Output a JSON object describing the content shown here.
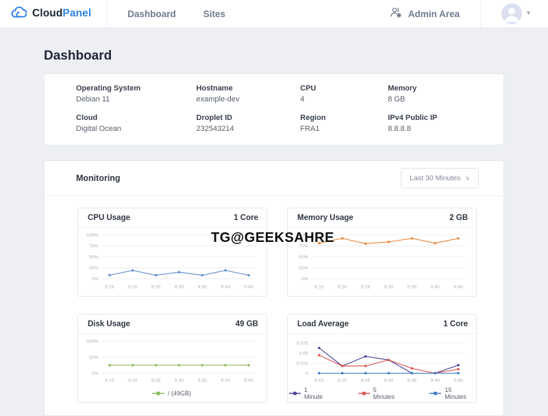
{
  "header": {
    "brand": {
      "part1": "Cloud",
      "part2": "Panel"
    },
    "nav": [
      {
        "label": "Dashboard"
      },
      {
        "label": "Sites"
      }
    ],
    "admin_area_label": "Admin Area"
  },
  "page": {
    "title": "Dashboard"
  },
  "system_info": {
    "fields": [
      {
        "label": "Operating System",
        "value": "Debian 11"
      },
      {
        "label": "Hostname",
        "value": "example-dev"
      },
      {
        "label": "CPU",
        "value": "4"
      },
      {
        "label": "Memory",
        "value": "8 GB"
      },
      {
        "label": "Cloud",
        "value": "Digital Ocean"
      },
      {
        "label": "Droplet ID",
        "value": "232543214"
      },
      {
        "label": "Region",
        "value": "FRA1"
      },
      {
        "label": "IPv4 Public IP",
        "value": "8.8.8.8"
      }
    ]
  },
  "monitoring": {
    "title": "Monitoring",
    "range_selector": "Last 30 Minutes"
  },
  "watermark": "TG@GEEKSAHRE",
  "colors": {
    "accent": "#2f87e8",
    "grid": "#ebeef2",
    "tick_text": "#a9b1bd"
  },
  "chart_data": [
    {
      "type": "line",
      "title": "CPU Usage",
      "value_label": "1 Core",
      "x": [
        "9:15",
        "9:20",
        "9:25",
        "9:30",
        "9:35",
        "9:40",
        "9:45"
      ],
      "ylim": [
        0,
        100
      ],
      "ytick_values": [
        0,
        25,
        50,
        75,
        100
      ],
      "ytick_labels": [
        "0%",
        "25%",
        "50%",
        "75%",
        "100%"
      ],
      "grid": true,
      "show_legend": false,
      "series": [
        {
          "name": "CPU",
          "color": "#6691cf",
          "values": [
            8,
            19,
            8,
            15,
            8,
            19,
            8
          ]
        }
      ]
    },
    {
      "type": "line",
      "title": "Memory Usage",
      "value_label": "2 GB",
      "x": [
        "9:15",
        "9:20",
        "9:25",
        "9:30",
        "9:35",
        "9:40",
        "9:45"
      ],
      "ylim": [
        0,
        100
      ],
      "ytick_values": [
        0,
        25,
        50,
        75,
        100
      ],
      "ytick_labels": [
        "0%",
        "25%",
        "50%",
        "75%",
        "100%"
      ],
      "grid": true,
      "show_legend": false,
      "series": [
        {
          "name": "Memory",
          "color": "#e6893f",
          "values": [
            81,
            92,
            80,
            84,
            92,
            81,
            92
          ]
        }
      ]
    },
    {
      "type": "line",
      "title": "Disk Usage",
      "value_label": "49 GB",
      "x": [
        "9:15",
        "9:20",
        "9:25",
        "9:30",
        "9:35",
        "9:40",
        "9:45"
      ],
      "ylim": [
        0,
        100
      ],
      "ytick_values": [
        0,
        50,
        100
      ],
      "ytick_labels": [
        "0%",
        "50%",
        "100%"
      ],
      "grid": true,
      "show_legend": true,
      "series": [
        {
          "name": "/ (49GB)",
          "color": "#8cb85c",
          "values": [
            25,
            25,
            25,
            25,
            25,
            25,
            25
          ]
        }
      ]
    },
    {
      "type": "line",
      "title": "Load Average",
      "value_label": "1 Core",
      "x": [
        "9:15",
        "9:20",
        "9:25",
        "9:30",
        "9:35",
        "9:40",
        "9:45"
      ],
      "ylim": [
        0,
        0.08
      ],
      "ytick_values": [
        0,
        0.025,
        0.05,
        0.075
      ],
      "ytick_labels": [
        "0",
        "0.025",
        "0.05",
        "0.075"
      ],
      "grid": true,
      "show_legend": true,
      "series": [
        {
          "name": "1 Minute",
          "color": "#4c4499",
          "values": [
            0.063,
            0.018,
            0.042,
            0.033,
            0,
            0,
            0.02
          ]
        },
        {
          "name": "5 Minutes",
          "color": "#d95555",
          "values": [
            0.045,
            0.018,
            0.018,
            0.033,
            0.012,
            0,
            0.01
          ]
        },
        {
          "name": "15 Minutes",
          "color": "#3e7cc7",
          "values": [
            0,
            0,
            0,
            0,
            0,
            0,
            0
          ]
        }
      ]
    }
  ]
}
